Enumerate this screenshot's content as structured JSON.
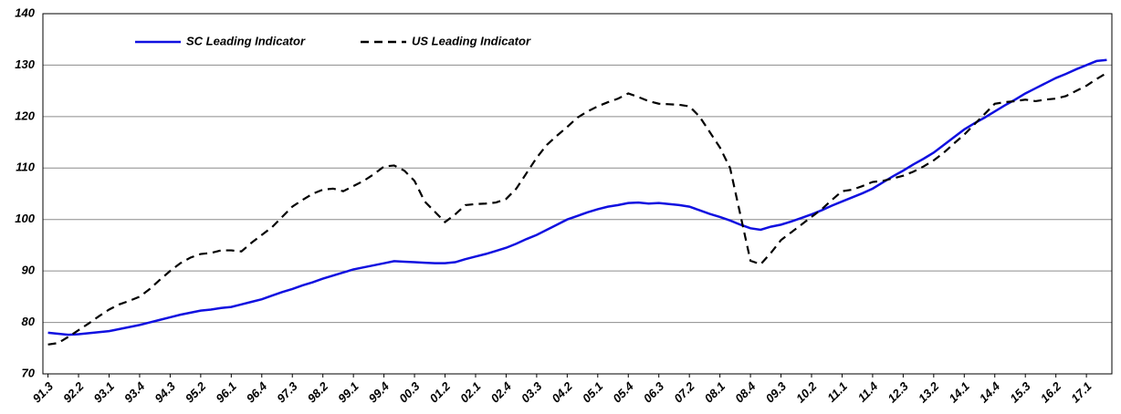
{
  "chart_data": {
    "type": "line",
    "categories": [
      "91.3",
      null,
      null,
      "92.2",
      null,
      null,
      "93.1",
      null,
      null,
      "93.4",
      null,
      null,
      "94.3",
      null,
      null,
      "95.2",
      null,
      null,
      "96.1",
      null,
      null,
      "96.4",
      null,
      null,
      "97.3",
      null,
      null,
      "98.2",
      null,
      null,
      "99.1",
      null,
      null,
      "99.4",
      null,
      null,
      "00.3",
      null,
      null,
      "01.2",
      null,
      null,
      "02.1",
      null,
      null,
      "02.4",
      null,
      null,
      "03.3",
      null,
      null,
      "04.2",
      null,
      null,
      "05.1",
      null,
      null,
      "05.4",
      null,
      null,
      "06.3",
      null,
      null,
      "07.2",
      null,
      null,
      "08.1",
      null,
      null,
      "08.4",
      null,
      null,
      "09.3",
      null,
      null,
      "10.2",
      null,
      null,
      "11.1",
      null,
      null,
      "11.4",
      null,
      null,
      "12.3",
      null,
      null,
      "13.2",
      null,
      null,
      "14.1",
      null,
      null,
      "14.4",
      null,
      null,
      "15.3",
      null,
      null,
      "16.2",
      null,
      null,
      "17.1",
      null,
      null
    ],
    "series": [
      {
        "name": "SC Leading Indicator",
        "color": "#1010e0",
        "dash": "solid",
        "values": [
          78.0,
          77.8,
          77.6,
          77.7,
          77.9,
          78.1,
          78.3,
          78.7,
          79.1,
          79.5,
          80.0,
          80.5,
          81.0,
          81.5,
          81.9,
          82.3,
          82.5,
          82.8,
          83.0,
          83.5,
          84.0,
          84.5,
          85.2,
          85.9,
          86.5,
          87.2,
          87.8,
          88.5,
          89.1,
          89.7,
          90.3,
          90.7,
          91.1,
          91.5,
          91.9,
          91.8,
          91.7,
          91.6,
          91.5,
          91.5,
          91.7,
          92.3,
          92.8,
          93.3,
          93.9,
          94.5,
          95.3,
          96.2,
          97.0,
          98.0,
          99.0,
          100.0,
          100.7,
          101.4,
          102.0,
          102.5,
          102.8,
          103.2,
          103.3,
          103.1,
          103.2,
          103.0,
          102.8,
          102.5,
          101.8,
          101.1,
          100.5,
          99.8,
          99.0,
          98.3,
          98.0,
          98.6,
          99.0,
          99.6,
          100.3,
          101.0,
          101.8,
          102.7,
          103.5,
          104.3,
          105.1,
          106.0,
          107.2,
          108.4,
          109.5,
          110.7,
          111.8,
          113.0,
          114.5,
          116.0,
          117.5,
          118.7,
          119.8,
          121.0,
          122.2,
          123.3,
          124.5,
          125.5,
          126.5,
          127.5,
          128.3,
          129.2,
          130.0,
          130.8,
          131.0
        ]
      },
      {
        "name": "US Leading Indicator",
        "color": "#000000",
        "dash": "dashed",
        "values": [
          75.7,
          76.0,
          77.2,
          78.5,
          79.8,
          81.2,
          82.5,
          83.5,
          84.2,
          85.0,
          86.5,
          88.3,
          90.0,
          91.5,
          92.6,
          93.3,
          93.5,
          94.0,
          94.0,
          93.8,
          95.5,
          97.0,
          98.5,
          100.5,
          102.5,
          103.8,
          105.0,
          105.8,
          106.0,
          105.5,
          106.5,
          107.5,
          108.8,
          110.3,
          110.5,
          109.5,
          107.5,
          103.5,
          101.5,
          99.5,
          101.0,
          102.8,
          103.0,
          103.1,
          103.3,
          104.0,
          106.0,
          109.0,
          112.0,
          114.5,
          116.3,
          118.0,
          119.8,
          121.0,
          122.0,
          122.8,
          123.5,
          124.5,
          123.8,
          123.0,
          122.5,
          122.4,
          122.3,
          122.0,
          120.0,
          117.0,
          114.0,
          110.0,
          101.0,
          92.0,
          91.3,
          93.5,
          96.0,
          97.5,
          99.0,
          100.5,
          102.0,
          103.8,
          105.5,
          105.8,
          106.5,
          107.3,
          107.5,
          108.0,
          108.5,
          109.3,
          110.3,
          111.5,
          113.0,
          114.8,
          116.5,
          118.5,
          120.5,
          122.5,
          122.8,
          123.0,
          123.3,
          123.0,
          123.3,
          123.5,
          124.0,
          125.0,
          126.0,
          127.3,
          128.5
        ]
      }
    ],
    "ylim": [
      70,
      140
    ],
    "yticks": [
      70,
      80,
      90,
      100,
      110,
      120,
      130,
      140
    ],
    "grid": true,
    "legend": "upper left"
  }
}
